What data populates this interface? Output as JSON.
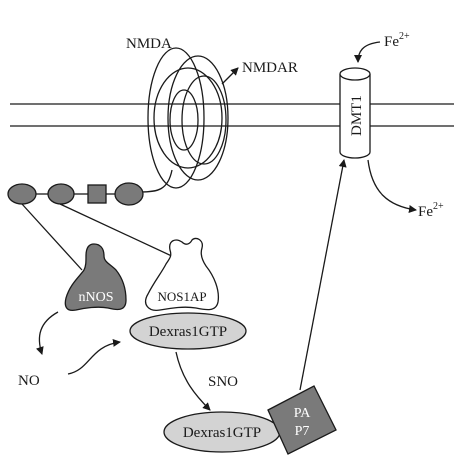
{
  "labels": {
    "nmda": "NMDA",
    "nmdar": "NMDAR",
    "dmt1": "DMT1",
    "fe_in": "Fe",
    "fe_out": "Fe",
    "fe_charge": "2+",
    "nnos": "nNOS",
    "nos1ap": "NOS1AP",
    "dexras_gtp_top": "Dexras1GTP",
    "dexras_gtp_bottom": "Dexras1GTP",
    "no": "NO",
    "sno": "SNO",
    "pap7_line1": "PA",
    "pap7_line2": "P7"
  },
  "colors": {
    "dark_fill": "#7a7a7a",
    "light_fill": "#d3d3d3",
    "line": "#1a1a1a"
  }
}
